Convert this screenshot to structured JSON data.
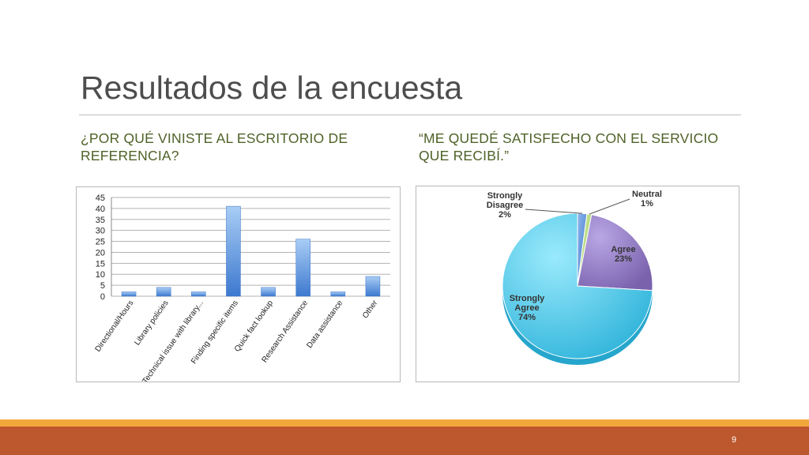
{
  "slide": {
    "title": "Resultados de la encuesta",
    "subtitle_left": "¿POR QUÉ VINISTE AL ESCRITORIO DE REFERENCIA?",
    "subtitle_right": "“ME QUEDÉ SATISFECHO CON EL SERVICIO QUE RECIBÍ.”",
    "page_number": "9"
  },
  "colors": {
    "title": "#4d4d4d",
    "subtitle": "#4f6228",
    "bar": "#4a86d4",
    "footer": "#bc572e",
    "footer_band": "#f0a83c",
    "pie_strongly_agree": "#4fc3e3",
    "pie_agree": "#8d76c0",
    "pie_neutral": "#b9dc7a",
    "pie_strongly_disagree": "#5d8fd6"
  },
  "chart_data": [
    {
      "type": "bar",
      "categories": [
        "Directional/Hours",
        "Library policies",
        "Technical issue with library...",
        "Finding specific items",
        "Quick fact lookup",
        "Research Assistance",
        "Data assistance",
        "Other"
      ],
      "values": [
        2,
        4,
        2,
        41,
        4,
        26,
        2,
        9
      ],
      "yticks": [
        "0",
        "5",
        "10",
        "15",
        "20",
        "25",
        "30",
        "35",
        "40",
        "45"
      ],
      "ylim": [
        0,
        45
      ],
      "grid": true,
      "legend": "none"
    },
    {
      "type": "pie",
      "slices": [
        {
          "label": "Strongly Disagree",
          "label_lines": [
            "Strongly",
            "Disagree"
          ],
          "pct_label": "2%",
          "value": 2
        },
        {
          "label": "Neutral",
          "label_lines": [
            "Neutral"
          ],
          "pct_label": "1%",
          "value": 1
        },
        {
          "label": "Agree",
          "label_lines": [
            "Agree"
          ],
          "pct_label": "23%",
          "value": 23
        },
        {
          "label": "Strongly Agree",
          "label_lines": [
            "Strongly",
            "Agree"
          ],
          "pct_label": "74%",
          "value": 74
        }
      ]
    }
  ]
}
